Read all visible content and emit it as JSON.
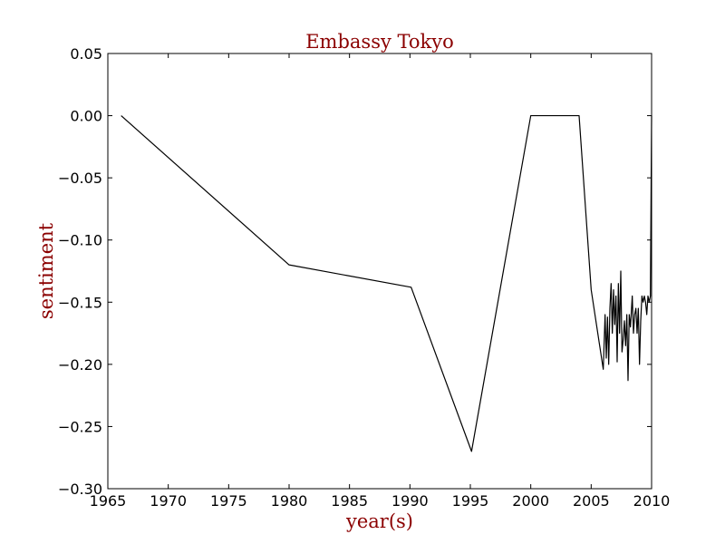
{
  "chart_data": {
    "type": "line",
    "title": "Embassy Tokyo",
    "xlabel": "year(s)",
    "ylabel": "sentiment",
    "xlim": [
      1965,
      2010
    ],
    "ylim": [
      -0.3,
      0.05
    ],
    "x_ticks": [
      1965,
      1970,
      1975,
      1980,
      1985,
      1990,
      1995,
      2000,
      2005,
      2010
    ],
    "x_tick_labels": [
      "1965",
      "1970",
      "1975",
      "1980",
      "1985",
      "1990",
      "1995",
      "2000",
      "2005",
      "2010"
    ],
    "y_ticks": [
      0.05,
      0.0,
      -0.05,
      -0.1,
      -0.15,
      -0.2,
      -0.25,
      -0.3
    ],
    "y_tick_labels": [
      "0.05",
      "0.00",
      "−0.05",
      "−0.10",
      "−0.15",
      "−0.20",
      "−0.25",
      "−0.30"
    ],
    "grid": false,
    "legend": "none",
    "colors": {
      "line": "#000000",
      "title": "#8b0000",
      "axis_label": "#8b0000",
      "axes": "#000000"
    },
    "series": [
      {
        "x": [
          1966.1,
          1980.0,
          1990.1,
          1995.1,
          2000.0,
          2004.0,
          2005.0,
          2006.0,
          2006.15,
          2006.25,
          2006.35,
          2006.45,
          2006.55,
          2006.65,
          2006.75,
          2006.85,
          2006.95,
          2007.05,
          2007.15,
          2007.25,
          2007.35,
          2007.45,
          2007.55,
          2007.65,
          2007.75,
          2007.85,
          2007.95,
          2008.05,
          2008.15,
          2008.25,
          2008.4,
          2008.5,
          2008.6,
          2008.7,
          2008.8,
          2008.9,
          2009.0,
          2009.1,
          2009.2,
          2009.3,
          2009.4,
          2009.5,
          2009.6,
          2009.7,
          2009.8,
          2009.9,
          2010.0
        ],
        "y": [
          0.0,
          -0.12,
          -0.138,
          -0.27,
          0.0,
          0.0,
          -0.14,
          -0.204,
          -0.16,
          -0.195,
          -0.162,
          -0.2,
          -0.155,
          -0.135,
          -0.175,
          -0.14,
          -0.168,
          -0.145,
          -0.198,
          -0.135,
          -0.175,
          -0.125,
          -0.19,
          -0.18,
          -0.165,
          -0.185,
          -0.16,
          -0.213,
          -0.16,
          -0.17,
          -0.145,
          -0.175,
          -0.16,
          -0.155,
          -0.175,
          -0.155,
          -0.2,
          -0.165,
          -0.145,
          -0.15,
          -0.145,
          -0.15,
          -0.16,
          -0.145,
          -0.15,
          -0.145,
          0.0
        ]
      }
    ]
  }
}
